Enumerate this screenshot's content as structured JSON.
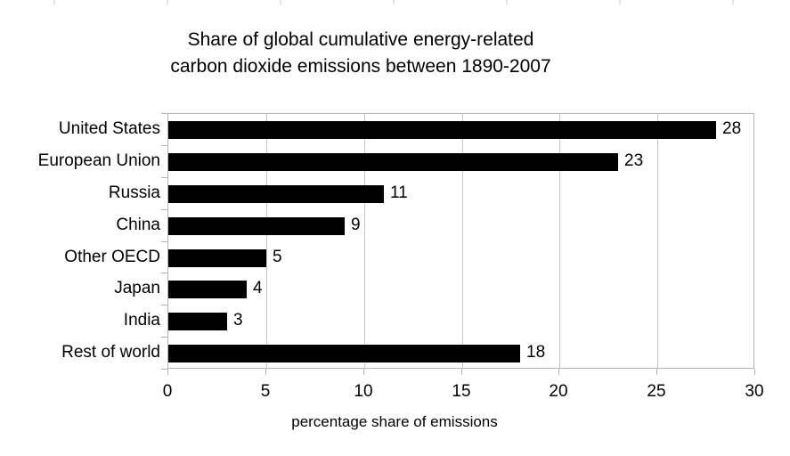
{
  "chart_data": {
    "type": "bar",
    "orientation": "horizontal",
    "title": "Share of global cumulative energy-related carbon dioxide emissions between 1890-2007",
    "title_lines": [
      "Share of global cumulative energy-related",
      "carbon dioxide emissions between 1890-2007"
    ],
    "categories": [
      "United States",
      "European Union",
      "Russia",
      "China",
      "Other OECD",
      "Japan",
      "India",
      "Rest of world"
    ],
    "values": [
      28,
      23,
      11,
      9,
      5,
      4,
      3,
      18
    ],
    "data_labels_shown": true,
    "xlabel": "percentage share of emissions",
    "ylabel": "",
    "xlim": [
      0,
      30
    ],
    "xticks": [
      0,
      5,
      10,
      15,
      20,
      25,
      30
    ],
    "grid": true,
    "legend": false,
    "bar_color": "#000000",
    "grid_color": "#c6c6c6",
    "frame_color": "#b4b4b4",
    "tick_color": "#b4b4b4",
    "text_color": "#000000",
    "background_color": "#ffffff"
  }
}
